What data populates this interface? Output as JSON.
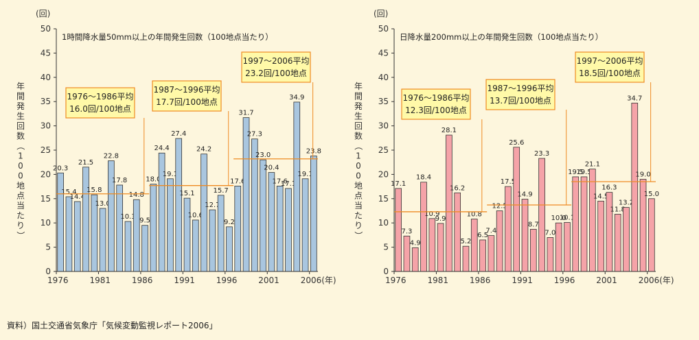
{
  "source_note": "資料）国土交通省気象庁「気候変動監視レポート2006」",
  "chart_data": [
    {
      "type": "bar",
      "title": "1時間降水量50mm以上の年間発生回数（100地点当たり）",
      "unit": "(回)",
      "ylabel": "年間発生回数（100地点当たり）",
      "x_unit": "(年)",
      "ylim": [
        0,
        50
      ],
      "y_ticks": [
        0,
        5,
        10,
        15,
        20,
        25,
        30,
        35,
        40,
        45,
        50
      ],
      "x_tick_years": [
        1976,
        1981,
        1986,
        1991,
        1996,
        2001,
        2006
      ],
      "x_tick_labels": [
        "1976",
        "1981",
        "1986",
        "1991",
        "1996",
        "2001",
        "2006(年)"
      ],
      "bar_color": "#a9c6df",
      "years": [
        1976,
        1977,
        1978,
        1979,
        1980,
        1981,
        1982,
        1983,
        1984,
        1985,
        1986,
        1987,
        1988,
        1989,
        1990,
        1991,
        1992,
        1993,
        1994,
        1995,
        1996,
        1997,
        1998,
        1999,
        2000,
        2001,
        2002,
        2003,
        2004,
        2005,
        2006
      ],
      "values": [
        20.3,
        15.4,
        14.4,
        21.5,
        15.8,
        13.0,
        22.8,
        17.8,
        10.3,
        14.8,
        9.5,
        18.0,
        24.4,
        19.1,
        27.4,
        15.1,
        10.6,
        24.2,
        12.7,
        15.7,
        9.2,
        17.6,
        31.7,
        27.3,
        23.0,
        20.4,
        17.6,
        17.1,
        34.9,
        19.1,
        23.8
      ],
      "labels": [
        "20.3",
        "15.4",
        "14.4",
        "21.5",
        "15.8",
        "13.0",
        "22.8",
        "17.8",
        "10.3",
        "14.8",
        "9.5",
        "18.0",
        "24.4",
        "19.1",
        "27.4",
        "15.1",
        "10.6",
        "24.2",
        "12.7",
        "15.7",
        "9.2",
        "17.6",
        "31.7",
        "27.3",
        "23.0",
        "20.4",
        "17.6",
        "17.1",
        "34.9",
        "19.1",
        "23.8"
      ],
      "averages": [
        {
          "period": "1976〜1986平均",
          "text": "16.0回/100地点",
          "value": 16.0,
          "from": 1976,
          "to": 1986
        },
        {
          "period": "1987〜1996平均",
          "text": "17.7回/100地点",
          "value": 17.7,
          "from": 1987,
          "to": 1996
        },
        {
          "period": "1997〜2006平均",
          "text": "23.2回/100地点",
          "value": 23.2,
          "from": 1997,
          "to": 2006
        }
      ]
    },
    {
      "type": "bar",
      "title": "日降水量200mm以上の年間発生回数（100地点当たり）",
      "unit": "(回)",
      "ylabel": "年間発生回数（100地点当たり）",
      "x_unit": "(年)",
      "ylim": [
        0,
        50
      ],
      "y_ticks": [
        0,
        5,
        10,
        15,
        20,
        25,
        30,
        35,
        40,
        45,
        50
      ],
      "x_tick_years": [
        1976,
        1981,
        1986,
        1991,
        1996,
        2001,
        2006
      ],
      "x_tick_labels": [
        "1976",
        "1981",
        "1986",
        "1991",
        "1996",
        "2001",
        "2006(年)"
      ],
      "bar_color": "#f5a3a8",
      "years": [
        1976,
        1977,
        1978,
        1979,
        1980,
        1981,
        1982,
        1983,
        1984,
        1985,
        1986,
        1987,
        1988,
        1989,
        1990,
        1991,
        1992,
        1993,
        1994,
        1995,
        1996,
        1997,
        1998,
        1999,
        2000,
        2001,
        2002,
        2003,
        2004,
        2005,
        2006
      ],
      "values": [
        17.1,
        7.3,
        4.9,
        18.4,
        10.9,
        9.9,
        28.1,
        16.2,
        5.2,
        10.8,
        6.5,
        7.4,
        12.5,
        17.5,
        25.6,
        14.9,
        8.7,
        23.3,
        7.0,
        10.0,
        10.1,
        19.5,
        19.5,
        21.1,
        14.5,
        16.3,
        11.8,
        13.2,
        34.7,
        19.0,
        15.0
      ],
      "labels": [
        "17.1",
        "7.3",
        "4.9",
        "18.4",
        "10.9",
        "9.9",
        "28.1",
        "16.2",
        "5.2",
        "10.8",
        "6.5",
        "7.4",
        "12.5",
        "17.5",
        "25.6",
        "14.9",
        "8.7",
        "23.3",
        "7.0",
        "10.0",
        "10.1",
        "19.5",
        "19.5",
        "21.1",
        "14.5",
        "16.3",
        "11.8",
        "13.2",
        "34.7",
        "19.0",
        "15.0"
      ],
      "averages": [
        {
          "period": "1976〜1986平均",
          "text": "12.3回/100地点",
          "value": 12.3,
          "from": 1976,
          "to": 1986
        },
        {
          "period": "1987〜1996平均",
          "text": "13.7回/100地点",
          "value": 13.7,
          "from": 1987,
          "to": 1996
        },
        {
          "period": "1997〜2006平均",
          "text": "18.5回/100地点",
          "value": 18.5,
          "from": 1997,
          "to": 2006
        }
      ]
    }
  ]
}
